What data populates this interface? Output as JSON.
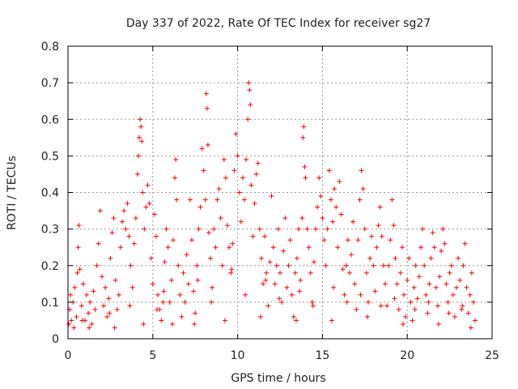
{
  "chart_data": {
    "type": "scatter",
    "title": "Day 337 of 2022, Rate Of TEC Index for receiver sg27",
    "xlabel": "GPS time / hours",
    "ylabel": "ROTI / TECUs",
    "xlim": [
      0,
      25
    ],
    "ylim": [
      0,
      0.8
    ],
    "x_ticks": [
      "0",
      "5",
      "10",
      "15",
      "20",
      "25"
    ],
    "y_ticks": [
      "0",
      "0.1",
      "0.2",
      "0.3",
      "0.4",
      "0.5",
      "0.6",
      "0.7",
      "0.8"
    ],
    "x_tick_values": [
      0,
      5,
      10,
      15,
      20,
      25
    ],
    "y_tick_values": [
      0,
      0.1,
      0.2,
      0.3,
      0.4,
      0.5,
      0.6,
      0.7,
      0.8
    ],
    "grid": true,
    "marker": "plus",
    "series_color": "#ff0000",
    "points": [
      [
        0.05,
        0.04
      ],
      [
        0.1,
        0.08
      ],
      [
        0.15,
        0.12
      ],
      [
        0.2,
        0.05
      ],
      [
        0.3,
        0.1
      ],
      [
        0.4,
        0.14
      ],
      [
        0.5,
        0.06
      ],
      [
        0.55,
        0.18
      ],
      [
        0.6,
        0.25
      ],
      [
        0.65,
        0.31
      ],
      [
        0.7,
        0.19
      ],
      [
        0.8,
        0.09
      ],
      [
        0.9,
        0.15
      ],
      [
        1.0,
        0.05
      ],
      [
        1.1,
        0.12
      ],
      [
        1.2,
        0.07
      ],
      [
        1.3,
        0.1
      ],
      [
        1.4,
        0.04
      ],
      [
        1.5,
        0.13
      ],
      [
        1.6,
        0.08
      ],
      [
        1.7,
        0.2
      ],
      [
        1.8,
        0.26
      ],
      [
        1.9,
        0.35
      ],
      [
        2.0,
        0.17
      ],
      [
        2.1,
        0.09
      ],
      [
        2.2,
        0.14
      ],
      [
        2.3,
        0.06
      ],
      [
        2.4,
        0.11
      ],
      [
        2.5,
        0.22
      ],
      [
        2.6,
        0.29
      ],
      [
        2.7,
        0.33
      ],
      [
        2.8,
        0.16
      ],
      [
        2.9,
        0.08
      ],
      [
        3.0,
        0.12
      ],
      [
        3.1,
        0.25
      ],
      [
        3.2,
        0.32
      ],
      [
        3.3,
        0.35
      ],
      [
        3.4,
        0.3
      ],
      [
        3.5,
        0.37
      ],
      [
        3.6,
        0.28
      ],
      [
        3.7,
        0.2
      ],
      [
        3.8,
        0.14
      ],
      [
        3.9,
        0.26
      ],
      [
        4.0,
        0.33
      ],
      [
        4.1,
        0.45
      ],
      [
        4.15,
        0.5
      ],
      [
        4.2,
        0.55
      ],
      [
        4.25,
        0.6
      ],
      [
        4.3,
        0.58
      ],
      [
        4.35,
        0.54
      ],
      [
        4.4,
        0.4
      ],
      [
        4.5,
        0.3
      ],
      [
        4.6,
        0.36
      ],
      [
        4.7,
        0.42
      ],
      [
        4.8,
        0.37
      ],
      [
        4.9,
        0.22
      ],
      [
        5.0,
        0.15
      ],
      [
        5.1,
        0.34
      ],
      [
        5.2,
        0.28
      ],
      [
        5.3,
        0.12
      ],
      [
        5.4,
        0.08
      ],
      [
        5.5,
        0.05
      ],
      [
        5.6,
        0.1
      ],
      [
        5.7,
        0.21
      ],
      [
        5.8,
        0.3
      ],
      [
        5.9,
        0.25
      ],
      [
        6.0,
        0.1
      ],
      [
        6.1,
        0.16
      ],
      [
        6.2,
        0.27
      ],
      [
        6.3,
        0.44
      ],
      [
        6.35,
        0.49
      ],
      [
        6.4,
        0.38
      ],
      [
        6.5,
        0.2
      ],
      [
        6.6,
        0.12
      ],
      [
        6.7,
        0.06
      ],
      [
        6.8,
        0.18
      ],
      [
        6.9,
        0.1
      ],
      [
        7.0,
        0.23
      ],
      [
        7.1,
        0.15
      ],
      [
        7.2,
        0.38
      ],
      [
        7.3,
        0.27
      ],
      [
        7.4,
        0.13
      ],
      [
        7.5,
        0.07
      ],
      [
        7.6,
        0.2
      ],
      [
        7.7,
        0.3
      ],
      [
        7.8,
        0.36
      ],
      [
        7.9,
        0.52
      ],
      [
        8.0,
        0.46
      ],
      [
        8.1,
        0.38
      ],
      [
        8.15,
        0.67
      ],
      [
        8.2,
        0.63
      ],
      [
        8.25,
        0.53
      ],
      [
        8.3,
        0.29
      ],
      [
        8.4,
        0.22
      ],
      [
        8.5,
        0.14
      ],
      [
        8.6,
        0.3
      ],
      [
        8.7,
        0.25
      ],
      [
        8.8,
        0.38
      ],
      [
        8.9,
        0.41
      ],
      [
        9.0,
        0.33
      ],
      [
        9.1,
        0.2
      ],
      [
        9.2,
        0.49
      ],
      [
        9.3,
        0.44
      ],
      [
        9.4,
        0.31
      ],
      [
        9.5,
        0.25
      ],
      [
        9.6,
        0.18
      ],
      [
        9.7,
        0.26
      ],
      [
        9.8,
        0.46
      ],
      [
        9.9,
        0.56
      ],
      [
        10.0,
        0.5
      ],
      [
        10.1,
        0.4
      ],
      [
        10.2,
        0.32
      ],
      [
        10.3,
        0.44
      ],
      [
        10.4,
        0.38
      ],
      [
        10.5,
        0.49
      ],
      [
        10.6,
        0.6
      ],
      [
        10.65,
        0.7
      ],
      [
        10.7,
        0.68
      ],
      [
        10.75,
        0.64
      ],
      [
        10.8,
        0.42
      ],
      [
        10.9,
        0.28
      ],
      [
        11.0,
        0.37
      ],
      [
        11.1,
        0.45
      ],
      [
        11.2,
        0.48
      ],
      [
        11.3,
        0.3
      ],
      [
        11.4,
        0.22
      ],
      [
        11.5,
        0.15
      ],
      [
        11.6,
        0.28
      ],
      [
        11.7,
        0.18
      ],
      [
        11.8,
        0.09
      ],
      [
        11.9,
        0.21
      ],
      [
        12.0,
        0.39
      ],
      [
        12.1,
        0.25
      ],
      [
        12.2,
        0.15
      ],
      [
        12.3,
        0.2
      ],
      [
        12.4,
        0.3
      ],
      [
        12.5,
        0.18
      ],
      [
        12.6,
        0.1
      ],
      [
        12.7,
        0.24
      ],
      [
        12.8,
        0.33
      ],
      [
        12.9,
        0.14
      ],
      [
        13.0,
        0.2
      ],
      [
        13.1,
        0.27
      ],
      [
        13.2,
        0.12
      ],
      [
        13.3,
        0.06
      ],
      [
        13.4,
        0.18
      ],
      [
        13.5,
        0.22
      ],
      [
        13.6,
        0.3
      ],
      [
        13.7,
        0.16
      ],
      [
        13.8,
        0.33
      ],
      [
        13.85,
        0.55
      ],
      [
        13.9,
        0.58
      ],
      [
        13.95,
        0.47
      ],
      [
        14.0,
        0.44
      ],
      [
        14.1,
        0.3
      ],
      [
        14.2,
        0.25
      ],
      [
        14.3,
        0.18
      ],
      [
        14.4,
        0.1
      ],
      [
        14.5,
        0.21
      ],
      [
        14.6,
        0.3
      ],
      [
        14.7,
        0.36
      ],
      [
        14.8,
        0.44
      ],
      [
        14.9,
        0.39
      ],
      [
        15.0,
        0.33
      ],
      [
        15.1,
        0.27
      ],
      [
        15.2,
        0.2
      ],
      [
        15.3,
        0.3
      ],
      [
        15.4,
        0.46
      ],
      [
        15.5,
        0.38
      ],
      [
        15.6,
        0.32
      ],
      [
        15.7,
        0.41
      ],
      [
        15.8,
        0.36
      ],
      [
        15.9,
        0.25
      ],
      [
        16.0,
        0.43
      ],
      [
        16.1,
        0.34
      ],
      [
        16.2,
        0.19
      ],
      [
        16.3,
        0.12
      ],
      [
        16.4,
        0.2
      ],
      [
        16.5,
        0.27
      ],
      [
        16.6,
        0.18
      ],
      [
        16.7,
        0.23
      ],
      [
        16.8,
        0.32
      ],
      [
        16.9,
        0.15
      ],
      [
        17.0,
        0.08
      ],
      [
        17.1,
        0.27
      ],
      [
        17.2,
        0.38
      ],
      [
        17.3,
        0.46
      ],
      [
        17.4,
        0.41
      ],
      [
        17.5,
        0.3
      ],
      [
        17.6,
        0.18
      ],
      [
        17.7,
        0.1
      ],
      [
        17.8,
        0.22
      ],
      [
        17.9,
        0.28
      ],
      [
        18.0,
        0.2
      ],
      [
        18.1,
        0.13
      ],
      [
        18.2,
        0.25
      ],
      [
        18.3,
        0.31
      ],
      [
        18.4,
        0.36
      ],
      [
        18.5,
        0.28
      ],
      [
        18.6,
        0.2
      ],
      [
        18.7,
        0.15
      ],
      [
        18.8,
        0.09
      ],
      [
        18.9,
        0.2
      ],
      [
        19.0,
        0.27
      ],
      [
        19.1,
        0.38
      ],
      [
        19.2,
        0.31
      ],
      [
        19.3,
        0.22
      ],
      [
        19.4,
        0.15
      ],
      [
        19.5,
        0.08
      ],
      [
        19.6,
        0.18
      ],
      [
        19.7,
        0.25
      ],
      [
        19.8,
        0.12
      ],
      [
        19.9,
        0.06
      ],
      [
        20.0,
        0.16
      ],
      [
        20.1,
        0.22
      ],
      [
        20.2,
        0.1
      ],
      [
        20.3,
        0.05
      ],
      [
        20.4,
        0.14
      ],
      [
        20.5,
        0.2
      ],
      [
        20.6,
        0.11
      ],
      [
        20.7,
        0.17
      ],
      [
        20.8,
        0.25
      ],
      [
        20.9,
        0.3
      ],
      [
        21.0,
        0.2
      ],
      [
        21.1,
        0.12
      ],
      [
        21.2,
        0.07
      ],
      [
        21.3,
        0.15
      ],
      [
        21.4,
        0.22
      ],
      [
        21.5,
        0.29
      ],
      [
        21.6,
        0.25
      ],
      [
        21.7,
        0.14
      ],
      [
        21.8,
        0.09
      ],
      [
        21.9,
        0.17
      ],
      [
        22.0,
        0.24
      ],
      [
        22.1,
        0.3
      ],
      [
        22.2,
        0.26
      ],
      [
        22.3,
        0.15
      ],
      [
        22.4,
        0.1
      ],
      [
        22.5,
        0.18
      ],
      [
        22.6,
        0.2
      ],
      [
        22.7,
        0.12
      ],
      [
        22.8,
        0.06
      ],
      [
        22.9,
        0.14
      ],
      [
        23.0,
        0.22
      ],
      [
        23.1,
        0.16
      ],
      [
        23.2,
        0.08
      ],
      [
        23.3,
        0.2
      ],
      [
        23.4,
        0.26
      ],
      [
        23.5,
        0.14
      ],
      [
        23.6,
        0.07
      ],
      [
        23.7,
        0.12
      ],
      [
        23.8,
        0.18
      ],
      [
        23.9,
        0.1
      ],
      [
        24.0,
        0.05
      ],
      [
        0.35,
        0.03
      ],
      [
        1.25,
        0.03
      ],
      [
        2.75,
        0.03
      ],
      [
        4.45,
        0.04
      ],
      [
        6.15,
        0.04
      ],
      [
        7.45,
        0.04
      ],
      [
        9.25,
        0.05
      ],
      [
        11.35,
        0.06
      ],
      [
        13.45,
        0.05
      ],
      [
        15.55,
        0.05
      ],
      [
        17.65,
        0.06
      ],
      [
        19.75,
        0.04
      ],
      [
        21.85,
        0.04
      ],
      [
        23.75,
        0.03
      ],
      [
        2.45,
        0.07
      ],
      [
        5.25,
        0.08
      ],
      [
        8.45,
        0.1
      ],
      [
        10.45,
        0.12
      ],
      [
        12.45,
        0.11
      ],
      [
        14.45,
        0.09
      ],
      [
        16.45,
        0.1
      ],
      [
        18.45,
        0.09
      ],
      [
        20.45,
        0.08
      ],
      [
        22.45,
        0.07
      ],
      [
        0.85,
        0.05
      ],
      [
        3.65,
        0.09
      ],
      [
        5.65,
        0.13
      ],
      [
        7.65,
        0.16
      ],
      [
        9.65,
        0.19
      ],
      [
        11.65,
        0.16
      ],
      [
        13.65,
        0.13
      ],
      [
        15.65,
        0.14
      ],
      [
        17.25,
        0.12
      ],
      [
        19.25,
        0.11
      ],
      [
        21.25,
        0.1
      ],
      [
        23.25,
        0.09
      ]
    ]
  }
}
